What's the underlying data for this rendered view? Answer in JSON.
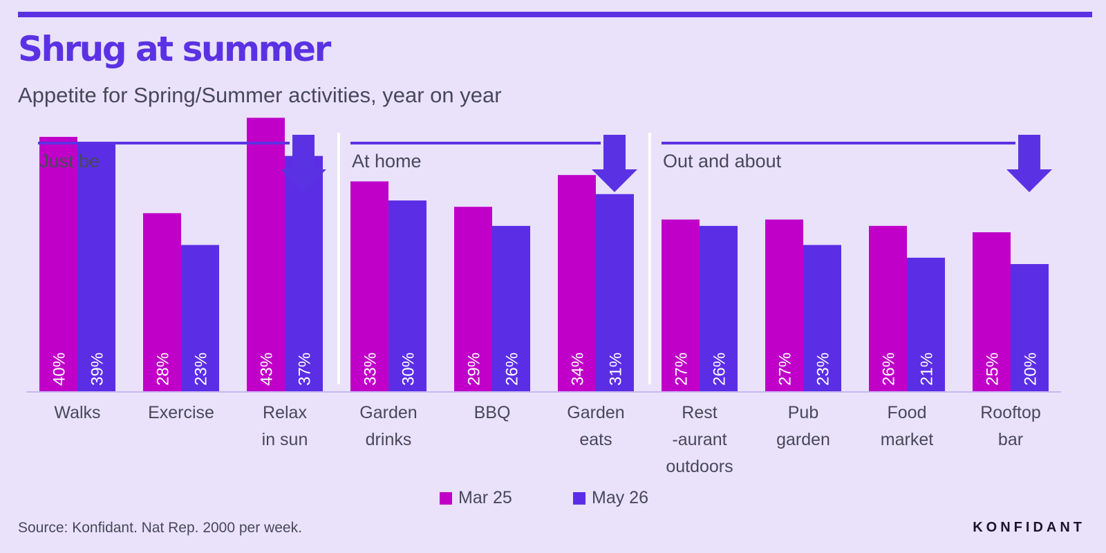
{
  "header": {
    "title": "Shrug at summer",
    "subtitle": "Appetite for Spring/Summer activities, year on year"
  },
  "colors": {
    "background": "#e9e2fa",
    "accent": "#5b32e3",
    "series_1": "#c000c8",
    "series_2": "#5b2ee6",
    "text": "#48485a"
  },
  "chart_data": {
    "type": "bar",
    "ylim": [
      0,
      50
    ],
    "grid": false,
    "legend_placement": "bottom",
    "groups": [
      {
        "label": "Just be",
        "categories": [
          0,
          1,
          2
        ],
        "trend": "down"
      },
      {
        "label": "At home",
        "categories": [
          3,
          4,
          5
        ],
        "trend": "down"
      },
      {
        "label": "Out and about",
        "categories": [
          6,
          7,
          8,
          9
        ],
        "trend": "down"
      }
    ],
    "categories": [
      [
        "Walks"
      ],
      [
        "Exercise"
      ],
      [
        "Relax",
        "in sun"
      ],
      [
        "Garden",
        "drinks"
      ],
      [
        "BBQ"
      ],
      [
        "Garden",
        "eats"
      ],
      [
        "Rest",
        "-aurant",
        "outdoors"
      ],
      [
        "Pub",
        "garden"
      ],
      [
        "Food",
        "market"
      ],
      [
        "Rooftop",
        "bar"
      ]
    ],
    "series": [
      {
        "name": "Mar 25",
        "values": [
          40,
          28,
          43,
          33,
          29,
          34,
          27,
          27,
          26,
          25
        ]
      },
      {
        "name": "May 26",
        "values": [
          39,
          23,
          37,
          30,
          26,
          31,
          26,
          23,
          21,
          20
        ]
      }
    ],
    "value_suffix": "%"
  },
  "legend": {
    "items": [
      {
        "label": "Mar 25"
      },
      {
        "label": "May 26"
      }
    ]
  },
  "footer": {
    "source": "Source: Konfidant. Nat Rep. 2000 per week.",
    "brand": "KONFIDANT"
  }
}
